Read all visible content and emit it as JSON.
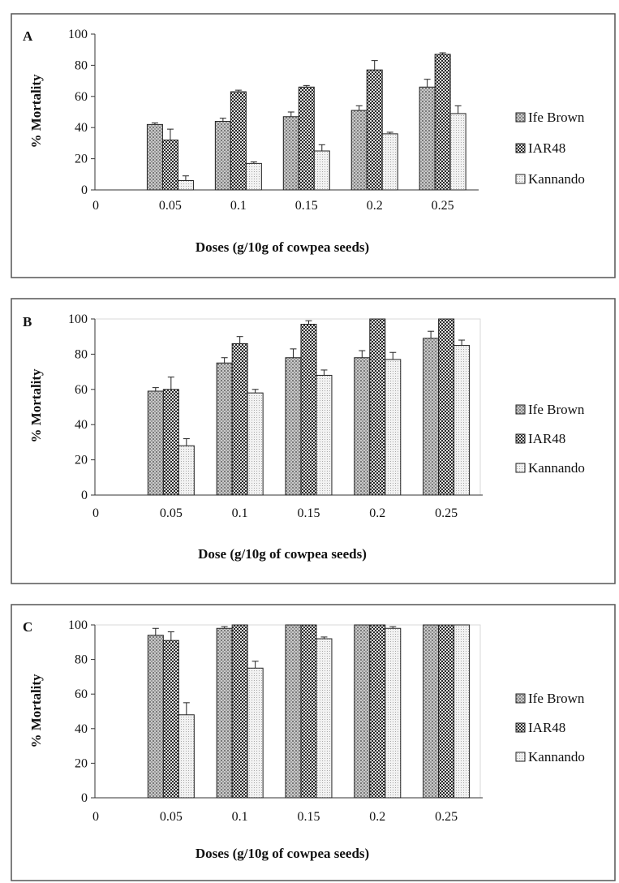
{
  "legend": [
    "Ife Brown",
    "IAR48",
    "Kannando"
  ],
  "categories": [
    "0",
    "0.05",
    "0.1",
    "0.15",
    "0.2",
    "0.25"
  ],
  "chart_data": [
    {
      "type": "bar",
      "panel": "A",
      "xlabel": "Doses (g/10g of cowpea seeds)",
      "ylabel": "% Mortality",
      "ylim": [
        0,
        100
      ],
      "yticks": [
        0,
        20,
        40,
        60,
        80,
        100
      ],
      "categories": [
        "0",
        "0.05",
        "0.1",
        "0.15",
        "0.2",
        "0.25"
      ],
      "legend_position": "right",
      "grid": false,
      "series": [
        {
          "name": "Ife Brown",
          "values": [
            null,
            42,
            44,
            47,
            51,
            66
          ],
          "errors": [
            null,
            1,
            2,
            3,
            3,
            5
          ]
        },
        {
          "name": "IAR48",
          "values": [
            null,
            32,
            63,
            66,
            77,
            87
          ],
          "errors": [
            null,
            7,
            1,
            1,
            6,
            1
          ]
        },
        {
          "name": "Kannando",
          "values": [
            null,
            6,
            17,
            25,
            36,
            49
          ],
          "errors": [
            null,
            3,
            1,
            4,
            1,
            5
          ]
        }
      ]
    },
    {
      "type": "bar",
      "panel": "B",
      "xlabel": "Dose (g/10g of cowpea seeds)",
      "ylabel": "% Mortality",
      "ylim": [
        0,
        100
      ],
      "yticks": [
        0,
        20,
        40,
        60,
        80,
        100
      ],
      "categories": [
        "0",
        "0.05",
        "0.1",
        "0.15",
        "0.2",
        "0.25"
      ],
      "legend_position": "right",
      "grid": false,
      "series": [
        {
          "name": "Ife Brown",
          "values": [
            null,
            59,
            75,
            78,
            78,
            89
          ],
          "errors": [
            null,
            2,
            3,
            5,
            4,
            4
          ]
        },
        {
          "name": "IAR48",
          "values": [
            null,
            60,
            86,
            97,
            100,
            100
          ],
          "errors": [
            null,
            7,
            4,
            2,
            0,
            0
          ]
        },
        {
          "name": "Kannando",
          "values": [
            null,
            28,
            58,
            68,
            77,
            85
          ],
          "errors": [
            null,
            4,
            2,
            3,
            4,
            3
          ]
        }
      ]
    },
    {
      "type": "bar",
      "panel": "C",
      "xlabel": "Doses (g/10g of cowpea seeds)",
      "ylabel": "% Mortality",
      "ylim": [
        0,
        100
      ],
      "yticks": [
        0,
        20,
        40,
        60,
        80,
        100
      ],
      "categories": [
        "0",
        "0.05",
        "0.1",
        "0.15",
        "0.2",
        "0.25"
      ],
      "legend_position": "right",
      "grid": false,
      "series": [
        {
          "name": "Ife Brown",
          "values": [
            null,
            94,
            98,
            100,
            100,
            100
          ],
          "errors": [
            null,
            4,
            1,
            0,
            0,
            0
          ]
        },
        {
          "name": "IAR48",
          "values": [
            null,
            91,
            100,
            100,
            100,
            100
          ],
          "errors": [
            null,
            5,
            0,
            0,
            0,
            0
          ]
        },
        {
          "name": "Kannando",
          "values": [
            null,
            48,
            75,
            92,
            98,
            100
          ],
          "errors": [
            null,
            7,
            4,
            1,
            1,
            0
          ]
        }
      ]
    }
  ]
}
